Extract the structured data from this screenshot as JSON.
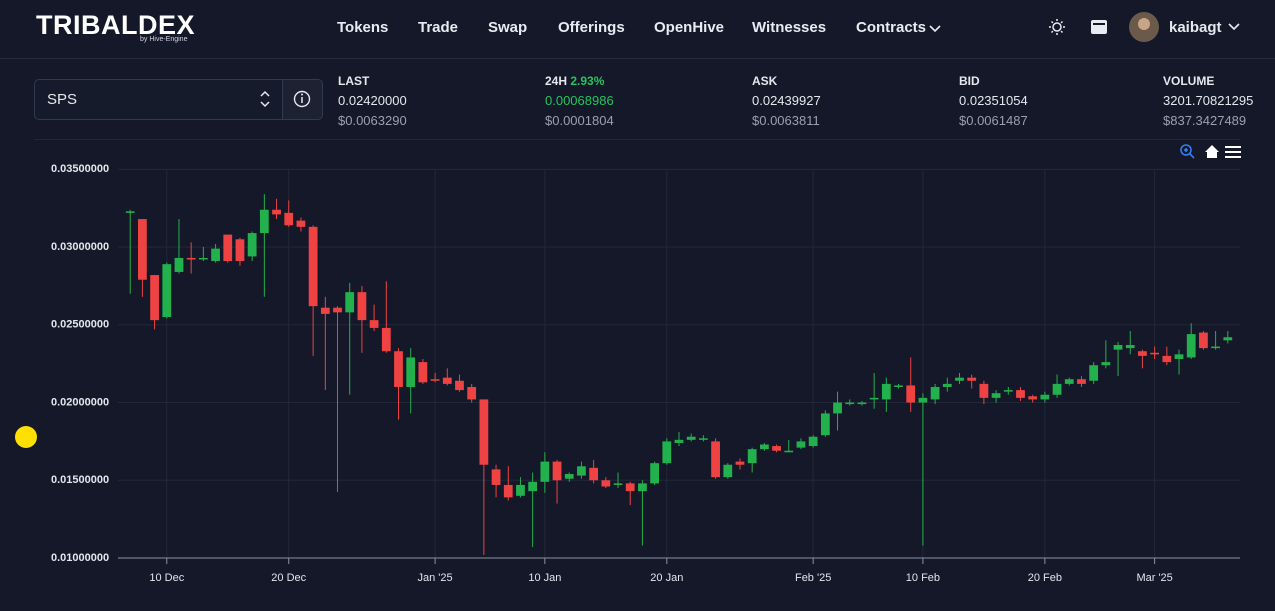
{
  "header": {
    "logo": "TRIBALDEX",
    "logo_sub": "by Hive-Engine",
    "nav": [
      "Tokens",
      "Trade",
      "Swap",
      "Offerings",
      "OpenHive",
      "Witnesses",
      "Contracts"
    ],
    "user": "kaibagt"
  },
  "market": {
    "symbol": "SPS",
    "stats": [
      {
        "label": "LAST",
        "value": "0.02420000",
        "usd": "$0.0063290"
      },
      {
        "label": "24H",
        "change": "2.93%",
        "value": "0.00068986",
        "usd": "$0.0001804"
      },
      {
        "label": "ASK",
        "value": "0.02439927",
        "usd": "$0.0063811"
      },
      {
        "label": "BID",
        "value": "0.02351054",
        "usd": "$0.0061487"
      },
      {
        "label": "VOLUME",
        "value": "3201.70821295",
        "usd": "$837.3427489"
      }
    ]
  },
  "chart_data": {
    "type": "candlestick",
    "up_color": "#22b14c",
    "down_color": "#ef4343",
    "grid": true,
    "x": [
      "2024-12-07",
      "2024-12-08",
      "2024-12-09",
      "2024-12-10",
      "2024-12-11",
      "2024-12-12",
      "2024-12-13",
      "2024-12-14",
      "2024-12-15",
      "2024-12-16",
      "2024-12-17",
      "2024-12-18",
      "2024-12-19",
      "2024-12-20",
      "2024-12-21",
      "2024-12-22",
      "2024-12-23",
      "2024-12-24",
      "2024-12-25",
      "2024-12-26",
      "2024-12-27",
      "2024-12-28",
      "2024-12-29",
      "2024-12-30",
      "2024-12-31",
      "2025-01-01",
      "2025-01-02",
      "2025-01-03",
      "2025-01-04",
      "2025-01-05",
      "2025-01-06",
      "2025-01-07",
      "2025-01-08",
      "2025-01-09",
      "2025-01-10",
      "2025-01-11",
      "2025-01-12",
      "2025-01-13",
      "2025-01-14",
      "2025-01-15",
      "2025-01-16",
      "2025-01-17",
      "2025-01-18",
      "2025-01-19",
      "2025-01-20",
      "2025-01-21",
      "2025-01-22",
      "2025-01-23",
      "2025-01-24",
      "2025-01-25",
      "2025-01-26",
      "2025-01-27",
      "2025-01-28",
      "2025-01-29",
      "2025-01-30",
      "2025-01-31",
      "2025-02-01",
      "2025-02-02",
      "2025-02-03",
      "2025-02-04",
      "2025-02-05",
      "2025-02-06",
      "2025-02-07",
      "2025-02-08",
      "2025-02-09",
      "2025-02-10",
      "2025-02-11",
      "2025-02-12",
      "2025-02-13",
      "2025-02-14",
      "2025-02-15",
      "2025-02-16",
      "2025-02-17",
      "2025-02-18",
      "2025-02-19",
      "2025-02-20",
      "2025-02-21",
      "2025-02-22",
      "2025-02-23",
      "2025-02-24",
      "2025-02-25",
      "2025-02-26",
      "2025-02-27",
      "2025-02-28",
      "2025-03-01",
      "2025-03-02",
      "2025-03-03",
      "2025-03-04",
      "2025-03-05",
      "2025-03-06",
      "2025-03-07"
    ],
    "open": [
      0.0322,
      0.0318,
      0.0282,
      0.0255,
      0.0284,
      0.0293,
      0.0292,
      0.0291,
      0.0308,
      0.0305,
      0.0294,
      0.0309,
      0.0324,
      0.0322,
      0.0317,
      0.0313,
      0.0261,
      0.0261,
      0.0258,
      0.0271,
      0.0253,
      0.0248,
      0.0233,
      0.021,
      0.0226,
      0.0215,
      0.0216,
      0.0214,
      0.021,
      0.0202,
      0.0157,
      0.0147,
      0.014,
      0.0143,
      0.0149,
      0.0162,
      0.0151,
      0.0153,
      0.0158,
      0.015,
      0.0147,
      0.0148,
      0.0143,
      0.0148,
      0.0161,
      0.0174,
      0.0176,
      0.0176,
      0.0175,
      0.0152,
      0.0162,
      0.0161,
      0.017,
      0.0172,
      0.0168,
      0.0171,
      0.0172,
      0.0179,
      0.0193,
      0.0199,
      0.0199,
      0.0202,
      0.0202,
      0.021,
      0.0211,
      0.02,
      0.0202,
      0.021,
      0.0214,
      0.0216,
      0.0212,
      0.0203,
      0.0207,
      0.0208,
      0.0204,
      0.0202,
      0.0205,
      0.0212,
      0.0215,
      0.0214,
      0.0224,
      0.0234,
      0.0235,
      0.0233,
      0.0232,
      0.023,
      0.0228,
      0.0229,
      0.0245,
      0.0235,
      0.024
    ],
    "high": [
      0.0324,
      0.0318,
      0.0282,
      0.029,
      0.0318,
      0.0303,
      0.03,
      0.0302,
      0.0308,
      0.0306,
      0.031,
      0.0334,
      0.0331,
      0.033,
      0.0319,
      0.0314,
      0.0268,
      0.0262,
      0.0277,
      0.0275,
      0.0263,
      0.0278,
      0.0235,
      0.0235,
      0.0228,
      0.0219,
      0.0222,
      0.0218,
      0.0212,
      0.0202,
      0.016,
      0.0159,
      0.0152,
      0.0155,
      0.0168,
      0.0163,
      0.0155,
      0.0162,
      0.0163,
      0.0152,
      0.0155,
      0.0149,
      0.015,
      0.0162,
      0.0177,
      0.0181,
      0.018,
      0.0179,
      0.0177,
      0.0161,
      0.0164,
      0.0171,
      0.0174,
      0.0173,
      0.0176,
      0.0177,
      0.0179,
      0.0195,
      0.0207,
      0.0202,
      0.0201,
      0.0219,
      0.0216,
      0.0212,
      0.0229,
      0.0206,
      0.0212,
      0.0216,
      0.0219,
      0.0218,
      0.0214,
      0.0208,
      0.021,
      0.021,
      0.0205,
      0.0207,
      0.0218,
      0.0216,
      0.0217,
      0.0226,
      0.024,
      0.0239,
      0.0246,
      0.0234,
      0.0236,
      0.0236,
      0.0234,
      0.0251,
      0.0246,
      0.0246,
      0.0246
    ],
    "low": [
      0.027,
      0.0268,
      0.0247,
      0.0254,
      0.0283,
      0.0283,
      0.0291,
      0.029,
      0.029,
      0.0288,
      0.0291,
      0.0268,
      0.0318,
      0.0313,
      0.031,
      0.023,
      0.0208,
      0.01425,
      0.0205,
      0.0232,
      0.0246,
      0.0232,
      0.0189,
      0.0193,
      0.0212,
      0.0213,
      0.0211,
      0.0207,
      0.02,
      0.0102,
      0.0139,
      0.0137,
      0.0139,
      0.0107,
      0.0142,
      0.0135,
      0.0149,
      0.0151,
      0.0148,
      0.0145,
      0.0145,
      0.0134,
      0.0108,
      0.0147,
      0.016,
      0.0172,
      0.0175,
      0.0175,
      0.0151,
      0.0151,
      0.0157,
      0.0155,
      0.0169,
      0.0168,
      0.0168,
      0.017,
      0.0171,
      0.0178,
      0.0182,
      0.0198,
      0.0198,
      0.0196,
      0.0194,
      0.0209,
      0.0194,
      0.0108,
      0.0199,
      0.0207,
      0.0212,
      0.0209,
      0.0199,
      0.02,
      0.0205,
      0.0201,
      0.02,
      0.02,
      0.0203,
      0.0211,
      0.021,
      0.0212,
      0.0222,
      0.0217,
      0.0231,
      0.0222,
      0.0228,
      0.0224,
      0.0218,
      0.0228,
      0.0234,
      0.0234,
      0.0238
    ],
    "close": [
      0.0323,
      0.0279,
      0.0253,
      0.0289,
      0.0293,
      0.0292,
      0.0293,
      0.0299,
      0.0291,
      0.0291,
      0.0309,
      0.0324,
      0.0321,
      0.0314,
      0.0313,
      0.0262,
      0.0257,
      0.0258,
      0.0271,
      0.0253,
      0.0248,
      0.0233,
      0.021,
      0.0229,
      0.0213,
      0.0214,
      0.0212,
      0.0208,
      0.0202,
      0.016,
      0.0147,
      0.0139,
      0.0147,
      0.0149,
      0.0162,
      0.015,
      0.0154,
      0.0159,
      0.015,
      0.0146,
      0.0148,
      0.0143,
      0.0148,
      0.0161,
      0.0175,
      0.0176,
      0.0178,
      0.0177,
      0.0152,
      0.016,
      0.016,
      0.017,
      0.0173,
      0.0169,
      0.0169,
      0.0175,
      0.0178,
      0.0193,
      0.02,
      0.02,
      0.02,
      0.0203,
      0.0212,
      0.0211,
      0.02,
      0.0203,
      0.021,
      0.0212,
      0.0216,
      0.0214,
      0.0203,
      0.0206,
      0.0208,
      0.0203,
      0.0202,
      0.0205,
      0.0212,
      0.0215,
      0.0212,
      0.0224,
      0.0226,
      0.0237,
      0.0237,
      0.023,
      0.0231,
      0.0226,
      0.0231,
      0.0244,
      0.0235,
      0.0236,
      0.0242
    ],
    "xlim": [
      "2024-12-06",
      "2025-03-08"
    ],
    "xticks": [
      {
        "value": "2024-12-10",
        "label": "10 Dec"
      },
      {
        "value": "2024-12-20",
        "label": "20 Dec"
      },
      {
        "value": "2025-01-01",
        "label": "Jan '25"
      },
      {
        "value": "2025-01-10",
        "label": "10 Jan"
      },
      {
        "value": "2025-01-20",
        "label": "20 Jan"
      },
      {
        "value": "2025-02-01",
        "label": "Feb '25"
      },
      {
        "value": "2025-02-10",
        "label": "10 Feb"
      },
      {
        "value": "2025-02-20",
        "label": "20 Feb"
      },
      {
        "value": "2025-03-01",
        "label": "Mar '25"
      }
    ],
    "ylim": [
      0.01,
      0.0356
    ],
    "yticks": [
      {
        "value": 0.01,
        "label": "0.01000000"
      },
      {
        "value": 0.015,
        "label": "0.01500000"
      },
      {
        "value": 0.02,
        "label": "0.02000000"
      },
      {
        "value": 0.025,
        "label": "0.02500000"
      },
      {
        "value": 0.03,
        "label": "0.03000000"
      },
      {
        "value": 0.035,
        "label": "0.03500000"
      }
    ]
  }
}
